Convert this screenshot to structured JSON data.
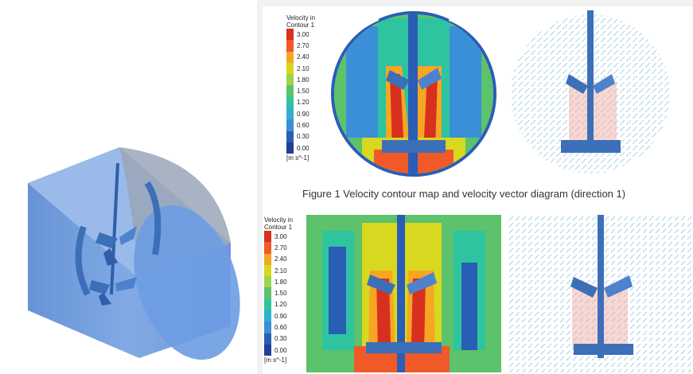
{
  "figure1": {
    "caption": "Figure 1 Velocity contour map and velocity vector diagram (direction 1)",
    "legend": {
      "title_line1": "Velocity in",
      "title_line2": "Contour 1",
      "unit": "[m s^-1]",
      "ticks": [
        "3.00",
        "2.70",
        "2.40",
        "2.10",
        "1.80",
        "1.50",
        "1.20",
        "0.90",
        "0.60",
        "0.30",
        "0.00"
      ]
    }
  },
  "figure2": {
    "legend": {
      "title_line1": "Velocity in",
      "title_line2": "Contour 1",
      "unit": "[m s^-1]",
      "ticks": [
        "3.00",
        "2.70",
        "2.40",
        "2.10",
        "1.80",
        "1.50",
        "1.20",
        "0.90",
        "0.60",
        "0.30",
        "0.00"
      ]
    }
  },
  "colors": {
    "scale": [
      "#d7301f",
      "#f05a28",
      "#f6a623",
      "#d8d820",
      "#9fd34a",
      "#5cc26b",
      "#2ec4a0",
      "#2fb0cf",
      "#3b8fd6",
      "#2a5db5",
      "#1f3f99"
    ],
    "tank": "#5b8fd6",
    "impeller": "#3c6fb8"
  }
}
